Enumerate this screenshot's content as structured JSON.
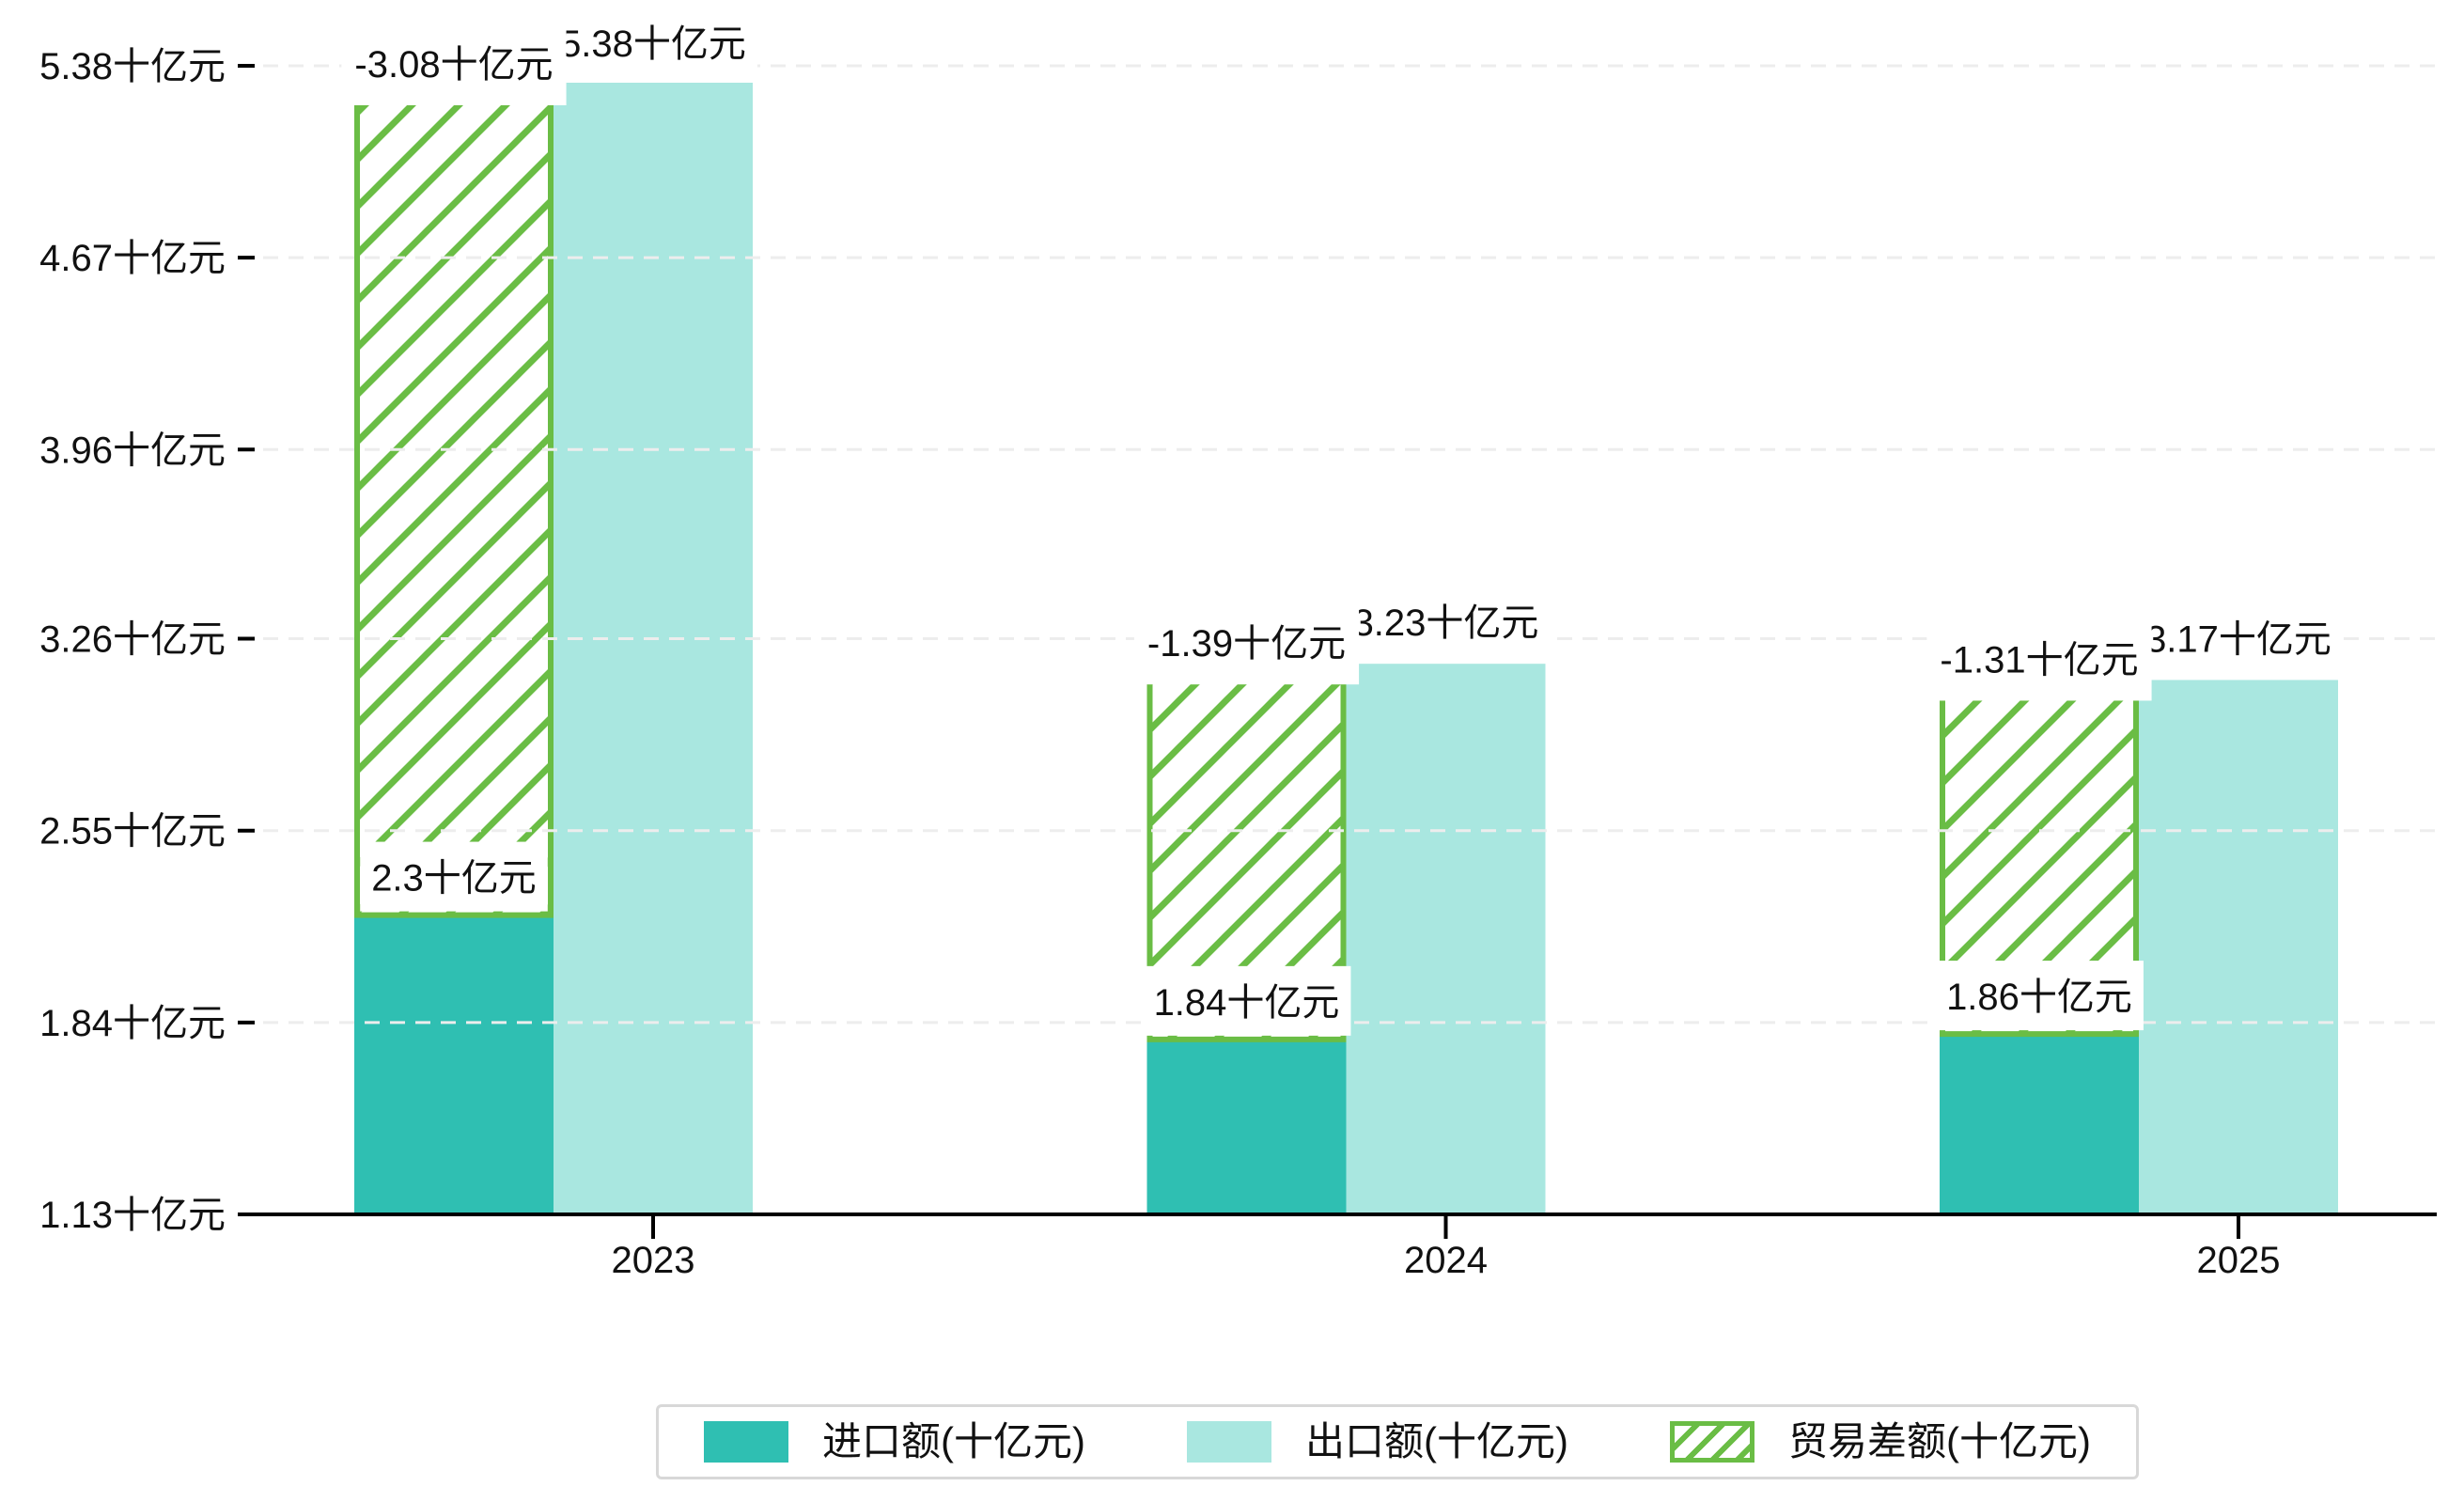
{
  "chart_data": {
    "type": "bar",
    "title": "",
    "categories": [
      "2023",
      "2024",
      "2025"
    ],
    "unit": "十亿元",
    "series": [
      {
        "name": "进口额(十亿元)",
        "values": [
          2.3,
          1.84,
          1.86
        ],
        "value_labels": [
          "2.3十亿元",
          "1.84十亿元",
          "1.86十亿元"
        ],
        "color": "#2fbfb2",
        "pattern": "solid"
      },
      {
        "name": "出口额(十亿元)",
        "values": [
          5.38,
          3.23,
          3.17
        ],
        "value_labels": [
          "5.38十亿元",
          "3.23十亿元",
          "3.17十亿元"
        ],
        "color": "#a9e7e0",
        "pattern": "solid"
      },
      {
        "name": "贸易差额(十亿元)",
        "values": [
          -3.08,
          -1.39,
          -1.31
        ],
        "value_labels": [
          "-3.08十亿元",
          "-1.39十亿元",
          "-1.31十亿元"
        ],
        "color": "#6abd45",
        "pattern": "diagonal-hatch",
        "note": "floating hatched bar drawn in the import-bar slot, spanning from the import value up to the export value"
      }
    ],
    "y_axis": {
      "min": 1.13,
      "max": 5.38,
      "tick_values": [
        1.13,
        1.84,
        2.55,
        3.26,
        3.96,
        4.67,
        5.38
      ],
      "tick_labels": [
        "1.13十亿元",
        "1.84十亿元",
        "2.55十亿元",
        "3.26十亿元",
        "3.96十亿元",
        "4.67十亿元",
        "5.38十亿元"
      ],
      "gridlines": "dashed"
    },
    "x_axis": {
      "tick_labels": [
        "2023",
        "2024",
        "2025"
      ]
    },
    "legend": {
      "position": "bottom-center",
      "items": [
        "进口额(十亿元)",
        "出口额(十亿元)",
        "贸易差额(十亿元)"
      ]
    },
    "colors": {
      "axis": "#000000",
      "grid": "#ededed",
      "label_text": "#111111",
      "legend_border": "#d8d8d8",
      "background": "#ffffff"
    }
  }
}
